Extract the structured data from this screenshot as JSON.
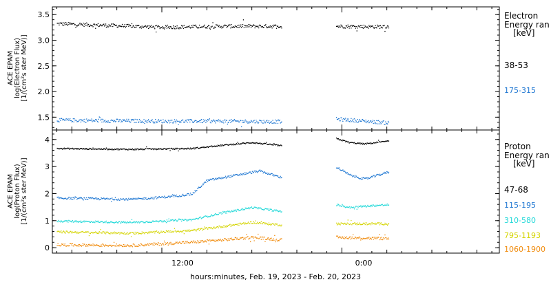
{
  "xlabel": "hours:minutes, Feb. 19, 2023 - Feb. 20, 2023",
  "x_ticks": [
    "12:00",
    "0:00"
  ],
  "colors": {
    "black": "#000000",
    "blue": "#1f77d2",
    "cyan": "#20d8d8",
    "yellow": "#d4d400",
    "orange": "#f08a0a"
  },
  "panels": {
    "electron": {
      "ylabel_lines": [
        "ACE EPAM",
        "log(Electron Flux)",
        "[1/(cm²s ster MeV)]"
      ],
      "legend_title_lines": [
        "Electron",
        "Energy ran",
        "[keV]"
      ],
      "legend": [
        {
          "label": "38-53",
          "color": "#000000"
        },
        {
          "label": "175-315",
          "color": "#1f77d2"
        }
      ]
    },
    "proton": {
      "ylabel_lines": [
        "ACE EPAM",
        "log(Proton Flux)",
        "[1/(cm²s ster MeV)]"
      ],
      "legend_title_lines": [
        "Proton",
        "Energy ran",
        "[keV]"
      ],
      "legend": [
        {
          "label": "47-68",
          "color": "#000000"
        },
        {
          "label": "115-195",
          "color": "#1f77d2"
        },
        {
          "label": "310-580",
          "color": "#20d8d8"
        },
        {
          "label": "795-1193",
          "color": "#d4d400"
        },
        {
          "label": "1060-1900",
          "color": "#f08a0a"
        }
      ]
    }
  },
  "chart_data": [
    {
      "type": "scatter",
      "panel": "electron",
      "x_unit": "hours since 2023-02-19 00:00",
      "xlim": [
        4.7,
        34.5
      ],
      "ylim": [
        1.25,
        3.65
      ],
      "yticks": [
        1.5,
        2.0,
        2.5,
        3.0,
        3.5
      ],
      "ytick_labels": [
        "1.5",
        "2.0",
        "2.5",
        "3.0",
        "3.5"
      ],
      "data_gap": [
        20.0,
        23.6
      ],
      "data_end": 27.1,
      "series": [
        {
          "name": "38-53",
          "color": "#000000",
          "x": [
            5,
            8,
            12,
            16,
            20,
            23.6,
            27
          ],
          "y": [
            3.33,
            3.3,
            3.26,
            3.28,
            3.28,
            3.28,
            3.27
          ],
          "noise": 0.035
        },
        {
          "name": "175-315",
          "color": "#1f77d2",
          "x": [
            5,
            8,
            12,
            16,
            20,
            23.6,
            27
          ],
          "y": [
            1.45,
            1.44,
            1.43,
            1.43,
            1.42,
            1.47,
            1.4
          ],
          "noise": 0.035
        }
      ]
    },
    {
      "type": "scatter",
      "panel": "proton",
      "x_unit": "hours since 2023-02-19 00:00",
      "xlim": [
        4.7,
        34.5
      ],
      "ylim": [
        -0.2,
        4.35
      ],
      "yticks": [
        0,
        1,
        2,
        3,
        4
      ],
      "ytick_labels": [
        "0",
        "1",
        "2",
        "3",
        "4"
      ],
      "data_gap": [
        20.0,
        23.6
      ],
      "data_end": 27.1,
      "series": [
        {
          "name": "47-68",
          "color": "#000000",
          "x": [
            5,
            10,
            14,
            16,
            18,
            20,
            23.6,
            24.5,
            25.5,
            27
          ],
          "y": [
            3.68,
            3.65,
            3.68,
            3.8,
            3.9,
            3.78,
            4.05,
            3.9,
            3.85,
            3.95
          ],
          "noise": 0.025
        },
        {
          "name": "115-195",
          "color": "#1f77d2",
          "x": [
            5,
            10,
            12.5,
            14,
            15,
            17,
            18.5,
            20,
            23.6,
            24.5,
            25.5,
            27
          ],
          "y": [
            1.85,
            1.8,
            1.9,
            2.0,
            2.5,
            2.7,
            2.85,
            2.6,
            3.0,
            2.7,
            2.55,
            2.8
          ],
          "noise": 0.04
        },
        {
          "name": "310-580",
          "color": "#20d8d8",
          "x": [
            5,
            10,
            14,
            16,
            18,
            20,
            23.6,
            24.5,
            25.5,
            27
          ],
          "y": [
            1.0,
            0.95,
            1.05,
            1.3,
            1.5,
            1.35,
            1.6,
            1.5,
            1.55,
            1.6
          ],
          "noise": 0.035
        },
        {
          "name": "795-1193",
          "color": "#d4d400",
          "x": [
            5,
            10,
            14,
            16,
            18,
            20,
            23.6,
            27
          ],
          "y": [
            0.6,
            0.55,
            0.65,
            0.8,
            0.95,
            0.85,
            0.9,
            0.9
          ],
          "noise": 0.04
        },
        {
          "name": "1060-1900",
          "color": "#f08a0a",
          "x": [
            5,
            10,
            14,
            16,
            18,
            20,
            23.6,
            27
          ],
          "y": [
            0.12,
            0.1,
            0.22,
            0.3,
            0.4,
            0.3,
            0.4,
            0.35
          ],
          "noise": 0.05
        }
      ]
    }
  ]
}
